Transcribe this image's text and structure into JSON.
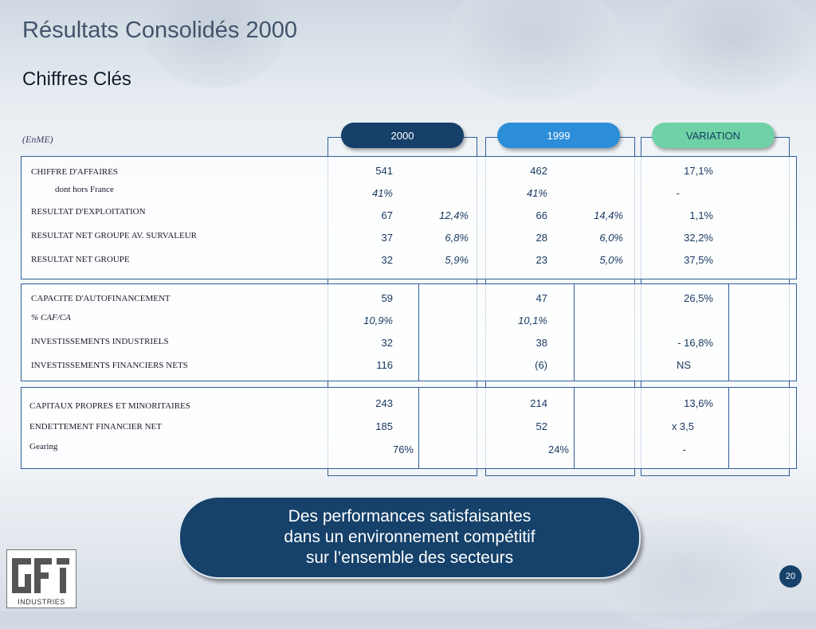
{
  "header": {
    "title": "Résultats Consolidés 2000",
    "subtitle": "Chiffres Clés",
    "unit": "(EnME)"
  },
  "columns": {
    "c2000": "2000",
    "c1999": "1999",
    "variation": "VARIATION"
  },
  "section1": {
    "rows": [
      {
        "label": "CHIFFRE D'AFFAIRES",
        "v2000": "541",
        "r2000": "",
        "v1999": "462",
        "r1999": "",
        "var": "17,1%"
      },
      {
        "label": "dont hors France",
        "v2000": "41%",
        "r2000": "",
        "v1999": "41%",
        "r1999": "",
        "var": "-"
      },
      {
        "label": "RESULTAT D'EXPLOITATION",
        "v2000": "67",
        "r2000": "12,4%",
        "v1999": "66",
        "r1999": "14,4%",
        "var": "1,1%"
      },
      {
        "label": "RESULTAT NET GROUPE AV. SURVALEUR",
        "v2000": "37",
        "r2000": "6,8%",
        "v1999": "28",
        "r1999": "6,0%",
        "var": "32,2%"
      },
      {
        "label": "RESULTAT NET GROUPE",
        "v2000": "32",
        "r2000": "5,9%",
        "v1999": "23",
        "r1999": "5,0%",
        "var": "37,5%"
      }
    ]
  },
  "section2": {
    "rows": [
      {
        "label": "CAPACITE D'AUTOFINANCEMENT",
        "v2000": "59",
        "v1999": "47",
        "var": "26,5%"
      },
      {
        "label": "% CAF/CA",
        "v2000": "10,9%",
        "v1999": "10,1%",
        "var": ""
      },
      {
        "label": "INVESTISSEMENTS INDUSTRIELS",
        "v2000": "32",
        "v1999": "38",
        "var": "- 16,8%"
      },
      {
        "label": "INVESTISSEMENTS FINANCIERS NETS",
        "v2000": "116",
        "v1999": "(6)",
        "var": "NS"
      }
    ]
  },
  "section3": {
    "rows": [
      {
        "label": "CAPITAUX PROPRES ET MINORITAIRES",
        "v2000": "243",
        "v1999": "214",
        "var": "13,6%"
      },
      {
        "label": "ENDETTEMENT FINANCIER NET",
        "v2000": "185",
        "v1999": "52",
        "var": "x 3,5"
      },
      {
        "label": "Gearing",
        "v2000": "76%",
        "v1999": "24%",
        "var": "-"
      }
    ]
  },
  "banner": {
    "line1": "Des performances satisfaisantes",
    "line2": "dans un environnement compétitif",
    "line3": "sur l’ensemble des secteurs"
  },
  "logo": {
    "text": "INDUSTRIES"
  },
  "page_number": "20"
}
